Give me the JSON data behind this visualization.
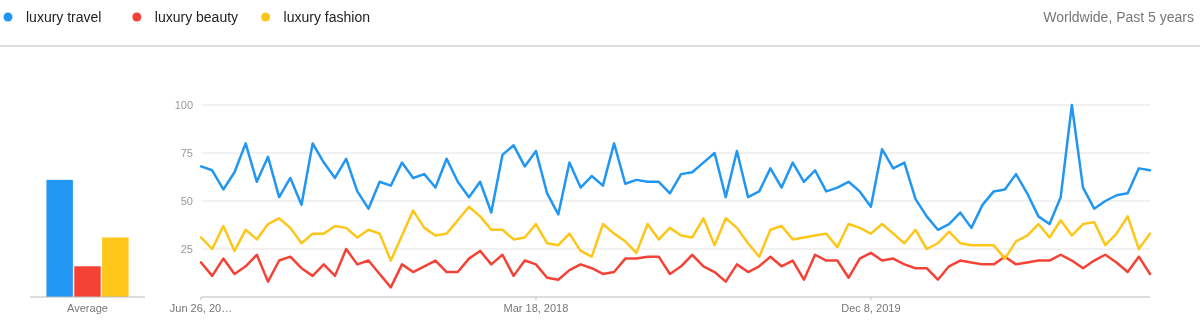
{
  "chart_data": [
    {
      "type": "bar",
      "categories": [
        "Average"
      ],
      "ylim": [
        0,
        100
      ],
      "tick_labels": "x",
      "series": [
        {
          "color": "#2196f3",
          "values": [
            61
          ]
        },
        {
          "color": "#f44336",
          "values": [
            16
          ]
        },
        {
          "color": "#ffc61a",
          "values": [
            31
          ]
        }
      ]
    },
    {
      "type": "line",
      "subtitle": "Worldwide, Past 5 years",
      "legend": "top left",
      "grid": "y",
      "ylim": [
        0,
        100
      ],
      "yticks": [
        25,
        50,
        75,
        100
      ],
      "xlim": [
        "2016-06-26",
        "2021-05-16"
      ],
      "xticks": [
        {
          "value": "2016-06-26",
          "label": "Jun 26, 20…"
        },
        {
          "value": "2018-03-18",
          "label": "Mar 18, 2018"
        },
        {
          "value": "2019-12-08",
          "label": "Dec 8, 2019"
        }
      ],
      "x": [
        "2016-06-26",
        "2016-07-17",
        "2016-08-07",
        "2016-08-28",
        "2016-09-18",
        "2016-10-09",
        "2016-10-30",
        "2016-11-20",
        "2016-12-11",
        "2017-01-01",
        "2017-01-22",
        "2017-02-12",
        "2017-03-05",
        "2017-03-26",
        "2017-04-16",
        "2017-05-07",
        "2017-05-28",
        "2017-06-18",
        "2017-07-09",
        "2017-07-30",
        "2017-08-20",
        "2017-09-10",
        "2017-10-01",
        "2017-10-22",
        "2017-11-12",
        "2017-12-03",
        "2017-12-24",
        "2018-01-14",
        "2018-02-04",
        "2018-02-25",
        "2018-03-18",
        "2018-04-08",
        "2018-04-29",
        "2018-05-20",
        "2018-06-10",
        "2018-07-01",
        "2018-07-22",
        "2018-08-12",
        "2018-09-02",
        "2018-09-23",
        "2018-10-14",
        "2018-11-04",
        "2018-11-25",
        "2018-12-16",
        "2019-01-06",
        "2019-01-27",
        "2019-02-17",
        "2019-03-10",
        "2019-03-31",
        "2019-04-21",
        "2019-05-12",
        "2019-06-02",
        "2019-06-23",
        "2019-07-14",
        "2019-08-04",
        "2019-08-25",
        "2019-09-15",
        "2019-10-06",
        "2019-10-27",
        "2019-11-17",
        "2019-12-08",
        "2019-12-29",
        "2020-01-19",
        "2020-02-09",
        "2020-03-01",
        "2020-03-22",
        "2020-04-12",
        "2020-05-03",
        "2020-05-24",
        "2020-06-14",
        "2020-07-05",
        "2020-07-26",
        "2020-08-16",
        "2020-09-06",
        "2020-09-27",
        "2020-10-18",
        "2020-11-08",
        "2020-11-29",
        "2020-12-20",
        "2021-01-10",
        "2021-01-31",
        "2021-02-21",
        "2021-03-14",
        "2021-04-04",
        "2021-04-25",
        "2021-05-16"
      ],
      "series": [
        {
          "name": "luxury travel",
          "color": "#2196f3",
          "values": [
            68,
            66,
            56,
            65,
            80,
            60,
            73,
            52,
            62,
            48,
            80,
            70,
            62,
            72,
            55,
            46,
            60,
            58,
            70,
            62,
            64,
            57,
            72,
            60,
            52,
            60,
            44,
            74,
            79,
            68,
            76,
            54,
            43,
            70,
            57,
            63,
            58,
            80,
            59,
            61,
            60,
            60,
            54,
            64,
            65,
            70,
            75,
            52,
            76,
            52,
            55,
            67,
            57,
            70,
            60,
            66,
            55,
            57,
            60,
            55,
            47,
            77,
            67,
            70,
            51,
            42,
            35,
            38,
            44,
            36,
            48,
            55,
            56,
            64,
            54,
            42,
            38,
            52,
            100,
            57,
            46,
            50,
            53,
            54,
            67,
            66
          ]
        },
        {
          "name": "luxury beauty",
          "color": "#f44336",
          "values": [
            18,
            11,
            20,
            12,
            16,
            22,
            8,
            19,
            21,
            15,
            11,
            17,
            11,
            25,
            17,
            19,
            12,
            5,
            17,
            13,
            16,
            19,
            13,
            13,
            20,
            24,
            17,
            22,
            11,
            19,
            17,
            10,
            9,
            14,
            17,
            15,
            12,
            13,
            20,
            20,
            21,
            21,
            12,
            16,
            22,
            16,
            13,
            8,
            17,
            13,
            16,
            21,
            16,
            19,
            9,
            22,
            19,
            19,
            10,
            20,
            23,
            19,
            20,
            17,
            15,
            15,
            9,
            16,
            19,
            18,
            17,
            17,
            21,
            17,
            18,
            19,
            19,
            22,
            19,
            15,
            19,
            22,
            18,
            13,
            21,
            12
          ]
        },
        {
          "name": "luxury fashion",
          "color": "#ffc61a",
          "values": [
            31,
            25,
            37,
            24,
            35,
            30,
            38,
            41,
            36,
            28,
            33,
            33,
            37,
            36,
            31,
            35,
            33,
            19,
            32,
            45,
            36,
            32,
            33,
            40,
            47,
            42,
            35,
            35,
            30,
            31,
            38,
            28,
            27,
            33,
            24,
            21,
            38,
            33,
            29,
            23,
            38,
            30,
            36,
            32,
            31,
            41,
            27,
            41,
            36,
            28,
            21,
            35,
            37,
            30,
            31,
            32,
            33,
            26,
            38,
            36,
            33,
            38,
            33,
            28,
            35,
            25,
            28,
            34,
            28,
            27,
            27,
            27,
            20,
            29,
            32,
            38,
            31,
            40,
            32,
            38,
            39,
            27,
            33,
            42,
            25,
            33
          ]
        }
      ]
    }
  ]
}
